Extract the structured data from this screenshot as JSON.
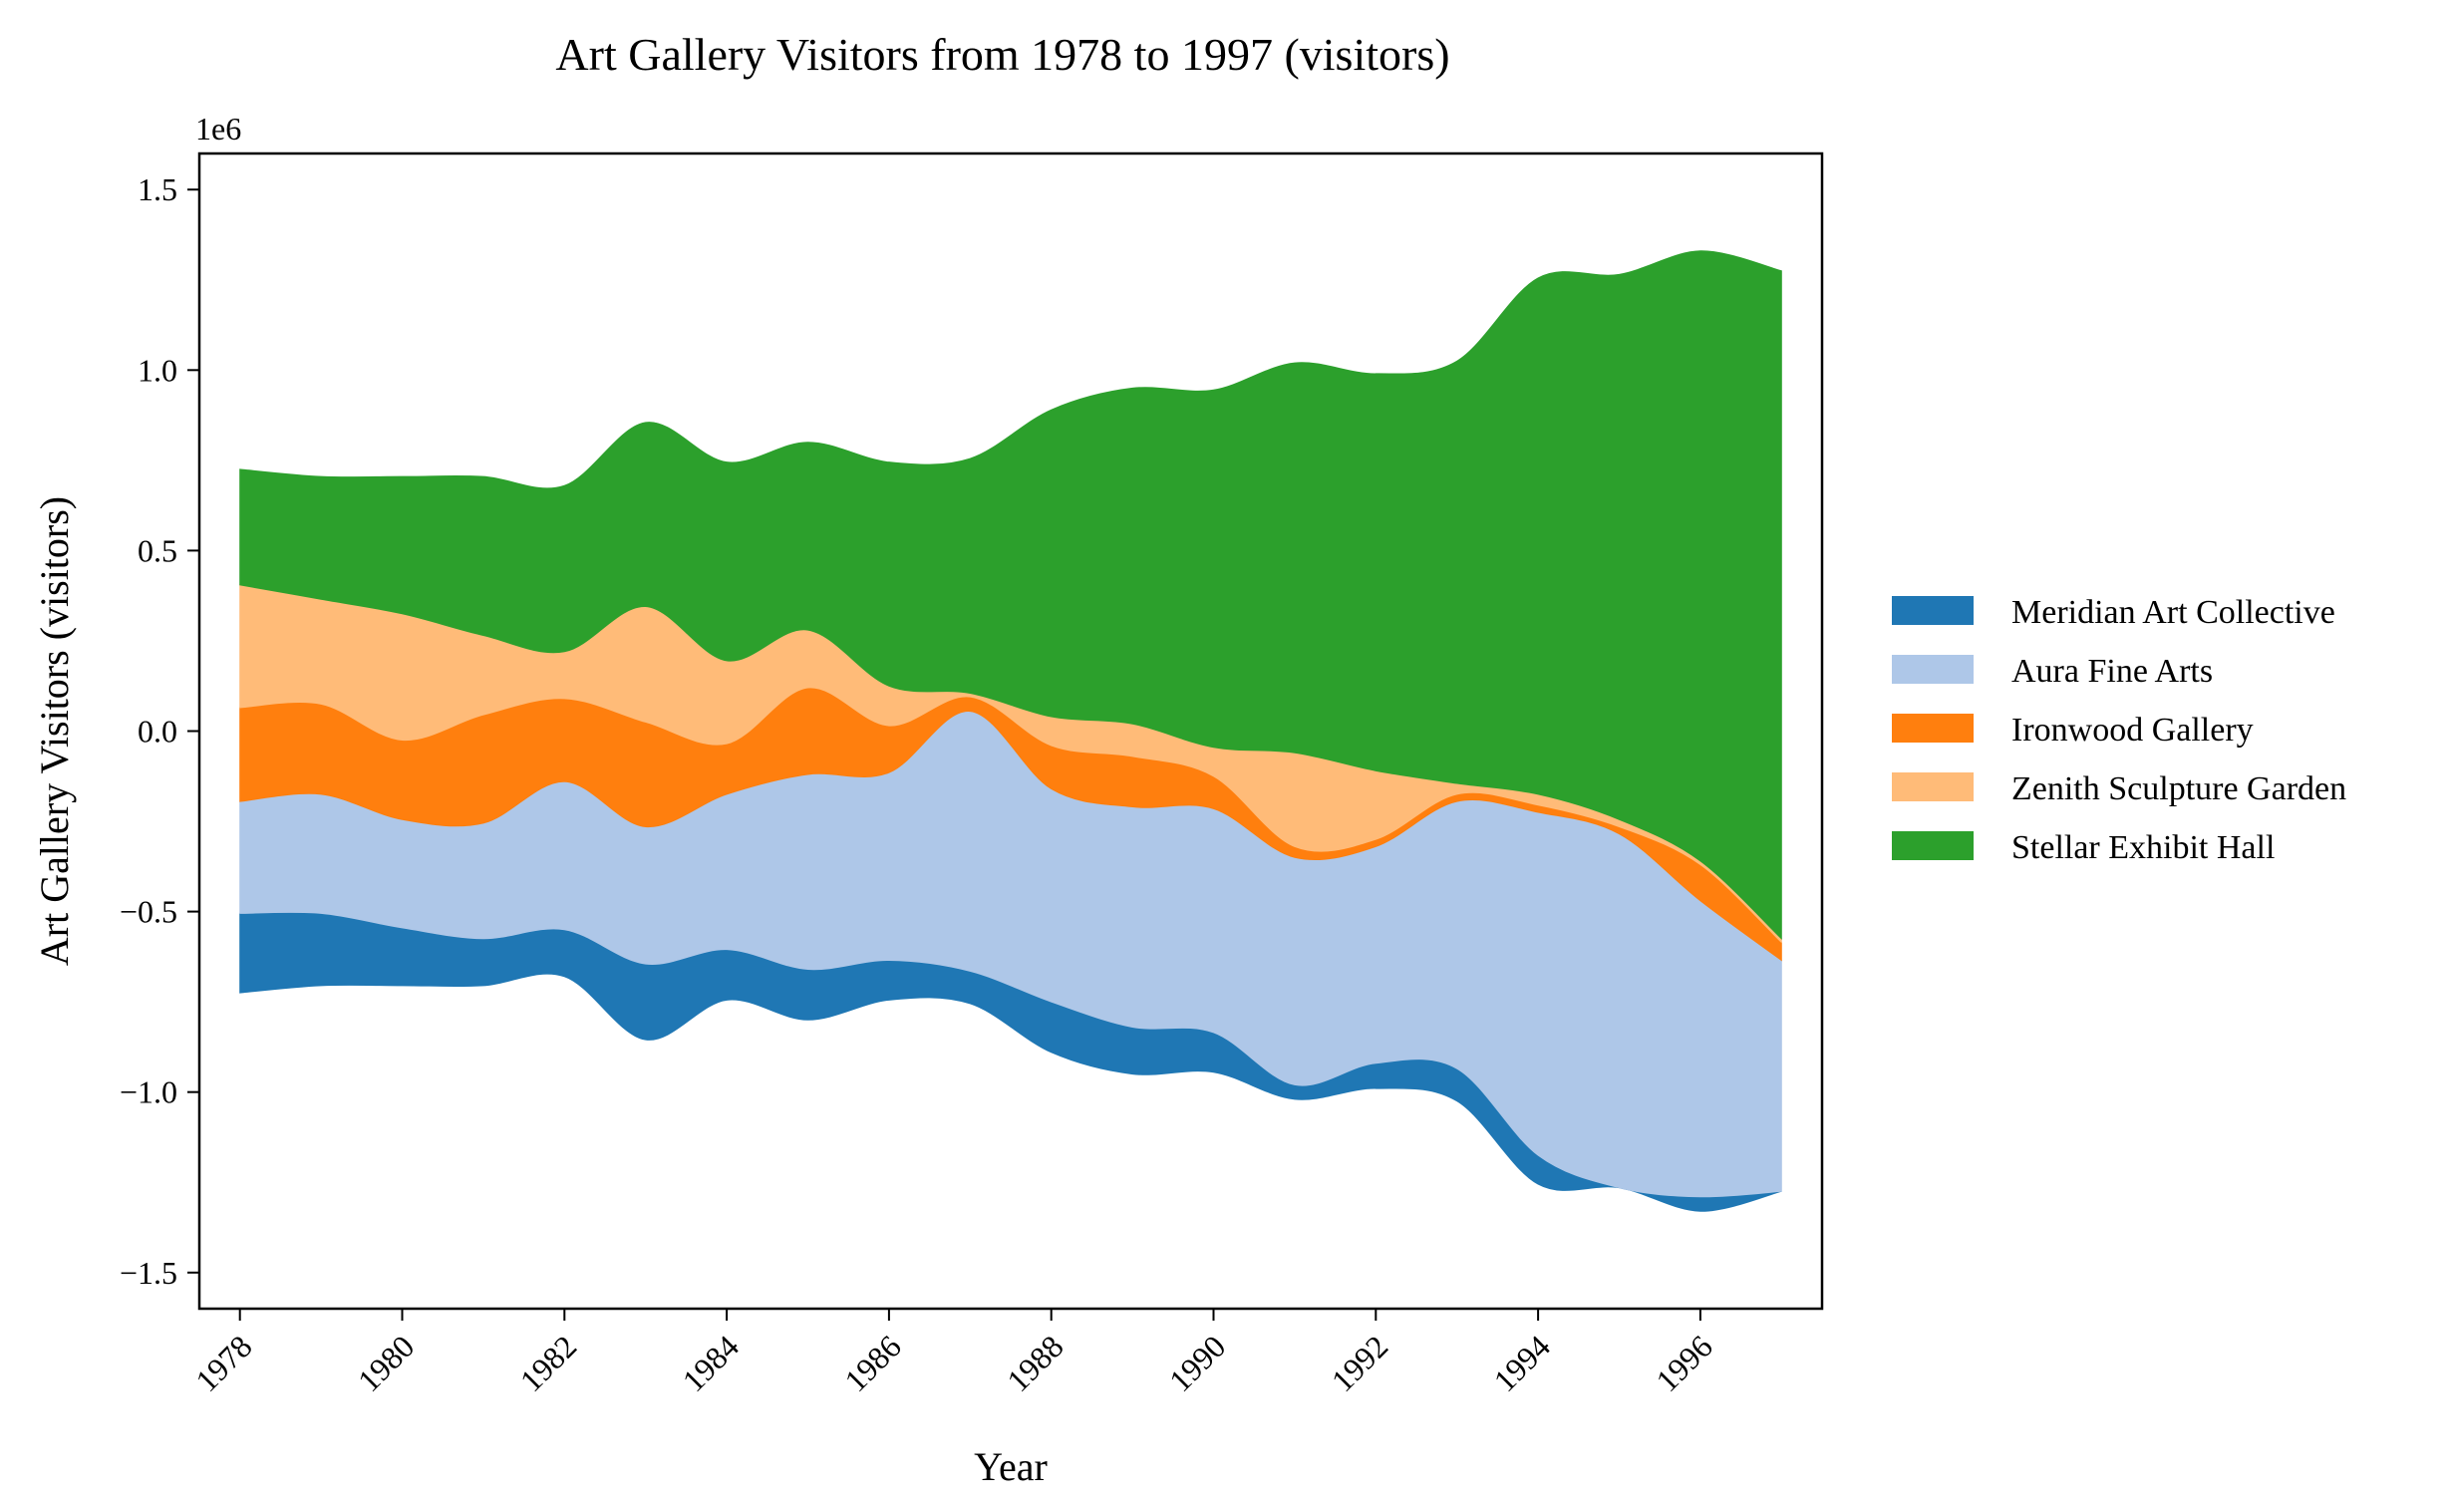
{
  "chart_data": {
    "type": "area",
    "title": "Art Gallery Visitors from 1978 to 1997 (visitors)",
    "xlabel": "Year",
    "ylabel": "Art Gallery Visitors (visitors)",
    "y_offset_label": "1e6",
    "x": [
      1978,
      1979,
      1980,
      1981,
      1982,
      1983,
      1984,
      1985,
      1986,
      1987,
      1988,
      1989,
      1990,
      1991,
      1992,
      1993,
      1994,
      1995,
      1996,
      1997
    ],
    "x_ticks": [
      1978,
      1980,
      1982,
      1984,
      1986,
      1988,
      1990,
      1992,
      1994,
      1996
    ],
    "y_ticks": [
      -1.5,
      -1.0,
      -0.5,
      0.0,
      0.5,
      1.0,
      1.5
    ],
    "y_tick_labels": [
      "−1.5",
      "−1.0",
      "−0.5",
      "0.0",
      "0.5",
      "1.0",
      "1.5"
    ],
    "ylim": [
      -1.6,
      1.6
    ],
    "xlim": [
      1977.5,
      1997.5
    ],
    "baseline": "symmetric",
    "legend_position": "right",
    "series": [
      {
        "name": "Meridian Art Collective",
        "color": "#1f77b4",
        "values": [
          220000,
          200000,
          160000,
          130000,
          130000,
          210000,
          140000,
          140000,
          110000,
          90000,
          140000,
          130000,
          110000,
          40000,
          70000,
          90000,
          80000,
          0,
          40000,
          0
        ]
      },
      {
        "name": "Aura Fine Arts",
        "color": "#aec7e8",
        "values": [
          310000,
          330000,
          300000,
          320000,
          410000,
          380000,
          430000,
          540000,
          520000,
          720000,
          590000,
          610000,
          620000,
          630000,
          600000,
          740000,
          950000,
          980000,
          820000,
          640000
        ]
      },
      {
        "name": "Ironwood Gallery",
        "color": "#ff7f0e",
        "values": [
          260000,
          250000,
          220000,
          300000,
          230000,
          290000,
          140000,
          240000,
          130000,
          40000,
          120000,
          140000,
          90000,
          30000,
          20000,
          20000,
          20000,
          20000,
          100000,
          50000
        ]
      },
      {
        "name": "Zenith Sculpture Garden",
        "color": "#ffbb78",
        "values": [
          340000,
          290000,
          350000,
          220000,
          130000,
          320000,
          230000,
          160000,
          110000,
          10000,
          80000,
          90000,
          80000,
          260000,
          190000,
          30000,
          30000,
          20000,
          10000,
          10000
        ]
      },
      {
        "name": "Stellar Exhibit Hall",
        "color": "#2ca02c",
        "values": [
          320000,
          340000,
          380000,
          440000,
          460000,
          510000,
          550000,
          520000,
          620000,
          650000,
          850000,
          930000,
          990000,
          1080000,
          1100000,
          1170000,
          1430000,
          1510000,
          1690000,
          1850000
        ]
      }
    ]
  }
}
